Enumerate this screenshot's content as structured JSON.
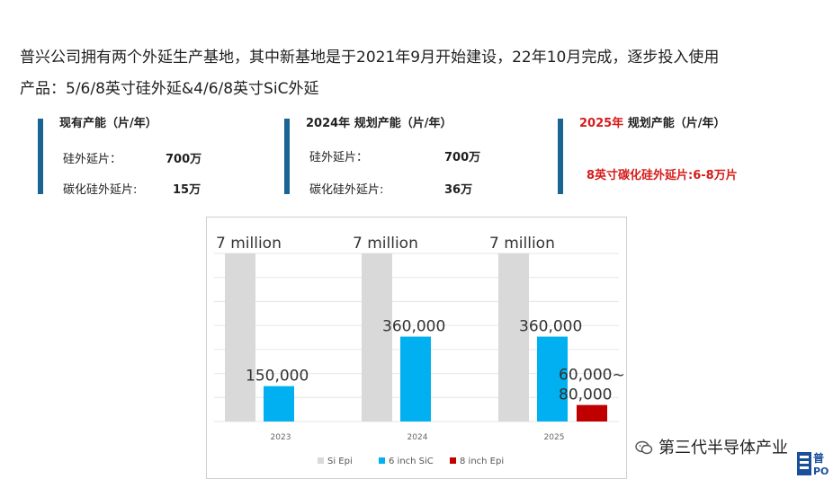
{
  "intro": {
    "line1": "普兴公司拥有两个外延生产基地，其中新基地是于2021年9月开始建设，22年10月完成，逐步投入使用",
    "line2": "产品：5/6/8英寸硅外延&4/6/8英寸SiC外延"
  },
  "capacity": [
    {
      "title": "现有产能（片/年）",
      "rows": [
        {
          "label": "硅外延片：",
          "value": "700万"
        },
        {
          "label": "碳化硅外延片:",
          "value": "15万"
        }
      ]
    },
    {
      "title": "2024年 规划产能（片/年）",
      "rows": [
        {
          "label": "硅外延片：",
          "value": "700万"
        },
        {
          "label": "碳化硅外延片:",
          "value": "36万"
        }
      ]
    },
    {
      "title_year": "2025年",
      "title_rest": " 规划产能（片/年）",
      "note": "8英寸碳化硅外延片:6-8万片"
    }
  ],
  "chart_data": {
    "type": "bar",
    "categories": [
      "2023",
      "2024",
      "2025"
    ],
    "series": [
      {
        "name": "Si Epi",
        "color": "#d9d9d9",
        "values": [
          7000000,
          7000000,
          7000000
        ],
        "labels": [
          "7 million",
          "7 million",
          "7 million"
        ]
      },
      {
        "name": "6 inch SiC",
        "color": "#00b0f0",
        "values": [
          150000,
          360000,
          360000
        ],
        "labels": [
          "150,000",
          "360,000",
          "360,000"
        ]
      },
      {
        "name": "8 inch Epi",
        "color": "#c00000",
        "values": [
          null,
          null,
          70000
        ],
        "labels": [
          null,
          null,
          "60,000~\n80,000"
        ]
      }
    ],
    "legend_position": "bottom",
    "grid": true
  },
  "watermark": {
    "text": "第三代半导体产业"
  },
  "logo": {
    "text": "普",
    "sub": "PO"
  }
}
